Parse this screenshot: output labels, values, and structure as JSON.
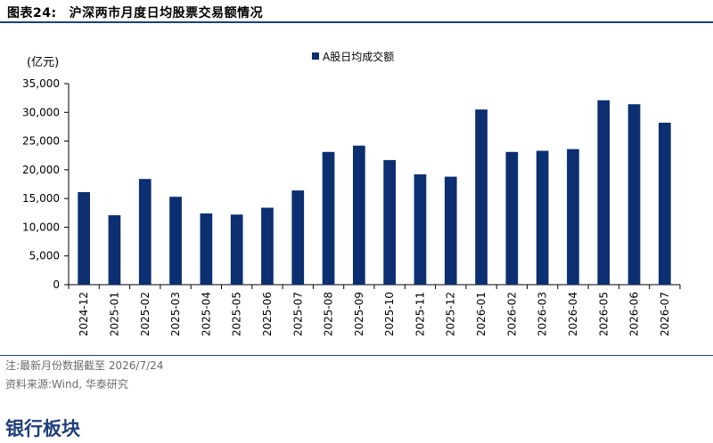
{
  "figure": {
    "label": "图表24:",
    "title": "沪深两市月度日均股票交易额情况"
  },
  "notes": {
    "note": "注:最新月份数据截至 2026/7/24",
    "source": "资料来源:Wind, 华泰研究"
  },
  "section": {
    "title": "银行板块"
  },
  "colors": {
    "bar": "#0b2f70",
    "rule": "#1f3f7a"
  },
  "chart_data": {
    "type": "bar",
    "unit_label": "(亿元)",
    "categories": [
      "2024-12",
      "2025-01",
      "2025-02",
      "2025-03",
      "2025-04",
      "2025-05",
      "2025-06",
      "2025-07",
      "2025-08",
      "2025-09",
      "2025-10",
      "2025-11",
      "2025-12",
      "2026-01",
      "2026-02",
      "2026-03",
      "2026-04",
      "2026-05",
      "2026-06",
      "2026-07"
    ],
    "series": [
      {
        "name": "A股日均成交额",
        "values": [
          16100,
          12100,
          18400,
          15300,
          12400,
          12200,
          13400,
          16400,
          23100,
          24200,
          21700,
          19200,
          18800,
          30500,
          23100,
          23300,
          23600,
          32100,
          31400,
          28200
        ]
      }
    ],
    "ylim": [
      0,
      35000
    ],
    "yticks": [
      0,
      5000,
      10000,
      15000,
      20000,
      25000,
      30000,
      35000
    ],
    "ytick_labels": [
      "0",
      "5,000",
      "10,000",
      "15,000",
      "20,000",
      "25,000",
      "30,000",
      "35,000"
    ],
    "legend_position": "top-center",
    "grid": false
  }
}
